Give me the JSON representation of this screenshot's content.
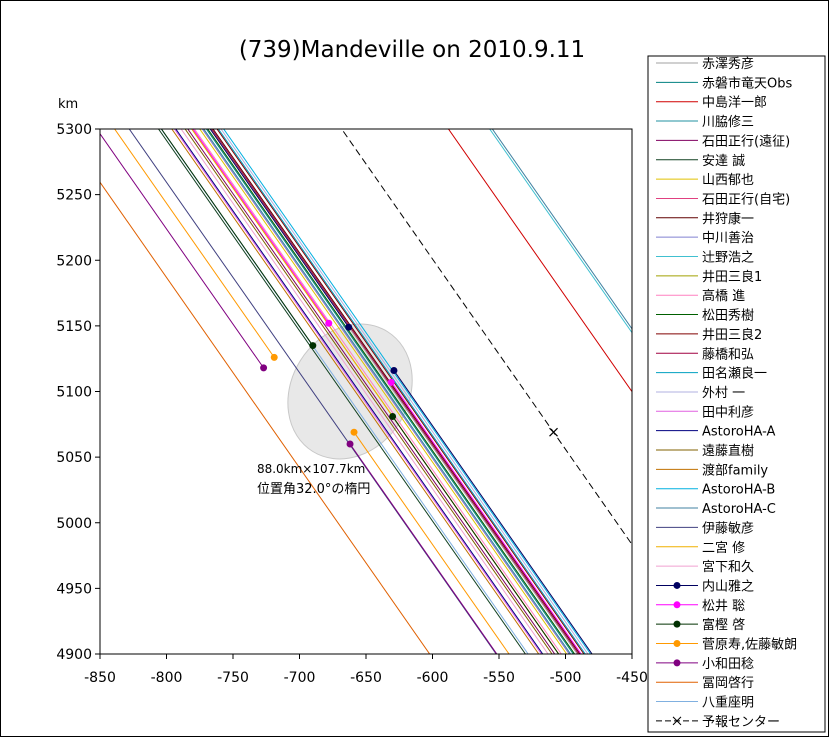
{
  "chart_data": {
    "type": "line",
    "title": "(739)Mandeville on 2010.9.11",
    "ylabel": "km",
    "xlabel": "",
    "xlim": [
      -850,
      -450
    ],
    "ylim": [
      4900,
      5300
    ],
    "xticks": [
      -850,
      -800,
      -750,
      -700,
      -650,
      -600,
      -550,
      -500,
      -450
    ],
    "yticks": [
      4900,
      4950,
      5000,
      5050,
      5100,
      5150,
      5200,
      5250,
      5300
    ],
    "grid": false,
    "legend_position": "right",
    "annotation": {
      "line1": "88.0km×107.7km",
      "line2": "位置角32.0°の楕円",
      "x": -732,
      "y": 5038
    },
    "ellipse": {
      "cx": -662,
      "cy": 5100,
      "a_km": 53.8,
      "b_km": 44.0,
      "position_angle_deg": 32.0,
      "color": "#e8e8e8"
    },
    "chord_slope": -1.45,
    "negative_chords": [
      {
        "name": "赤澤秀彦",
        "color": "#a0a0a0",
        "x_at_top": -767
      },
      {
        "name": "赤磐市竜天Obs",
        "color": "#008080",
        "x_at_top": -770
      },
      {
        "name": "中島洋一郎",
        "color": "#d00000",
        "x_at_top": -588
      },
      {
        "name": "川脇修三",
        "color": "#2090a0",
        "x_at_top": -772
      },
      {
        "name": "石田正行(遠征)",
        "color": "#800060",
        "x_at_top": -784
      },
      {
        "name": "安達 誠",
        "color": "#104020",
        "x_at_top": -806
      },
      {
        "name": "山西郁也",
        "color": "#e0c000",
        "x_at_top": -775
      },
      {
        "name": "石田正行(自宅)",
        "color": "#e04080",
        "x_at_top": -773
      },
      {
        "name": "井狩康一",
        "color": "#600000",
        "x_at_top": -765
      },
      {
        "name": "中川善治",
        "color": "#8080d0",
        "x_at_top": -773
      },
      {
        "name": "辻野浩之",
        "color": "#40c0d0",
        "x_at_top": -557
      },
      {
        "name": "井田三良1",
        "color": "#a0a000",
        "x_at_top": -781
      },
      {
        "name": "高橋 進",
        "color": "#ff80c0",
        "x_at_top": -779
      },
      {
        "name": "松田秀樹",
        "color": "#006000",
        "x_at_top": -769
      },
      {
        "name": "井田三良2",
        "color": "#800000",
        "x_at_top": -762
      },
      {
        "name": "藤橋和弘",
        "color": "#a00040",
        "x_at_top": -766
      },
      {
        "name": "田名瀬良一",
        "color": "#00a0c0",
        "x_at_top": -761
      },
      {
        "name": "外村 一",
        "color": "#b0b0e0",
        "x_at_top": -759
      },
      {
        "name": "田中利彦",
        "color": "#e060e0",
        "x_at_top": -794
      },
      {
        "name": "AstoroHA-A",
        "color": "#000080",
        "x_at_top": -793
      },
      {
        "name": "遠藤直樹",
        "color": "#806000",
        "x_at_top": -786
      },
      {
        "name": "渡部family",
        "color": "#c07000",
        "x_at_top": -796
      },
      {
        "name": "AstoroHA-B",
        "color": "#00b0e0",
        "x_at_top": -757
      },
      {
        "name": "AstoroHA-C",
        "color": "#4080a0",
        "x_at_top": -555
      },
      {
        "name": "伊藤敏彦",
        "color": "#404080",
        "x_at_top": -828
      },
      {
        "name": "二宮 修",
        "color": "#f0b000",
        "x_at_top": -781
      },
      {
        "name": "宮下和久",
        "color": "#f0a0d0",
        "x_at_top": -789
      },
      {
        "name": "冨岡啓行",
        "color": "#e06000",
        "x_at_top": -878
      },
      {
        "name": "八重座明",
        "color": "#80b0e0",
        "x_at_top": -804
      }
    ],
    "positive_chords": [
      {
        "name": "内山雅之",
        "color": "#000060",
        "disappear": [
          -663,
          5149
        ],
        "reappear": [
          -629,
          5116
        ]
      },
      {
        "name": "松井 聡",
        "color": "#ff00ff",
        "disappear": [
          -678,
          5152
        ],
        "reappear": [
          -631,
          5107
        ]
      },
      {
        "name": "富樫 啓",
        "color": "#003000",
        "disappear": [
          -690,
          5135
        ],
        "reappear": [
          -630,
          5081
        ]
      },
      {
        "name": "菅原寿,佐藤敏朗",
        "color": "#ff9900",
        "disappear": [
          -719,
          5126
        ],
        "reappear": [
          -659,
          5069
        ]
      },
      {
        "name": "小和田稔",
        "color": "#800080",
        "disappear": [
          -727,
          5118
        ],
        "reappear": [
          -662,
          5060
        ]
      }
    ],
    "prediction": {
      "name": "予報センター",
      "marker": [
        -509,
        5069
      ],
      "color": "#000000"
    }
  }
}
